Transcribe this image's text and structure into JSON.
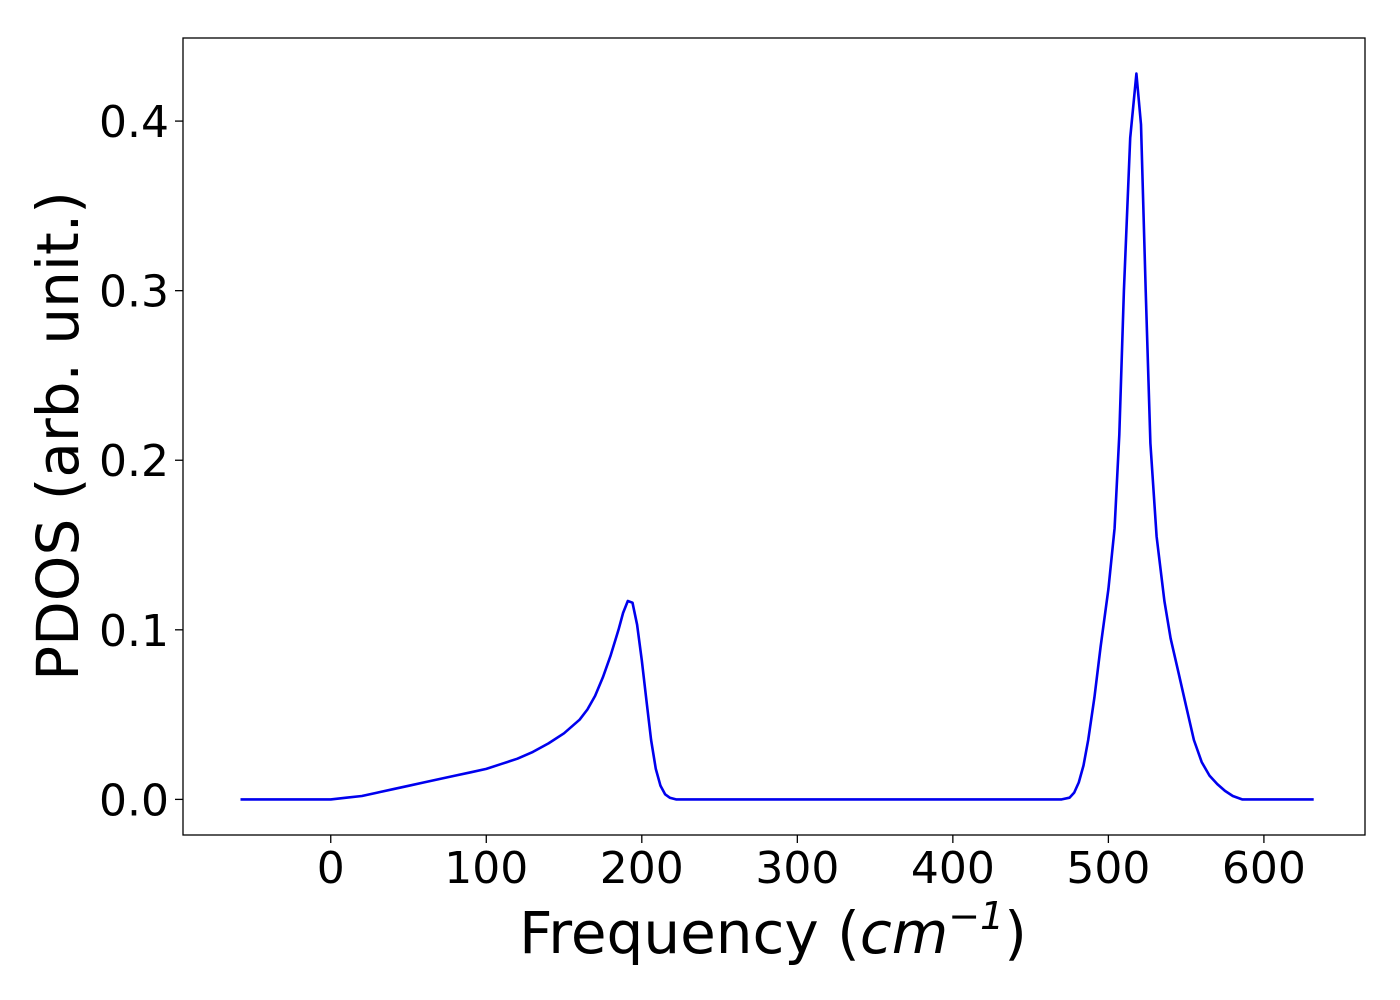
{
  "chart_data": {
    "type": "line",
    "title": "",
    "xlabel_prefix": "Frequency (",
    "xlabel_unit_base": "cm",
    "xlabel_unit_exp": "−1",
    "xlabel_suffix": ")",
    "ylabel": "PDOS (arb. unit.)",
    "xlim": [
      -95,
      665
    ],
    "ylim": [
      -0.021,
      0.449
    ],
    "xticks": [
      0,
      100,
      200,
      300,
      400,
      500,
      600
    ],
    "xtick_labels": [
      "0",
      "100",
      "200",
      "300",
      "400",
      "500",
      "600"
    ],
    "yticks": [
      0.0,
      0.1,
      0.2,
      0.3,
      0.4
    ],
    "ytick_labels": [
      "0.0",
      "0.1",
      "0.2",
      "0.3",
      "0.4"
    ],
    "grid": false,
    "legend": "none",
    "series": [
      {
        "color": "#0000ee",
        "x": [
          -58,
          -40,
          -20,
          0,
          10,
          20,
          30,
          40,
          50,
          60,
          70,
          80,
          90,
          100,
          110,
          120,
          130,
          140,
          150,
          160,
          165,
          170,
          175,
          180,
          185,
          188,
          191,
          194,
          197,
          200,
          203,
          206,
          209,
          212,
          215,
          218,
          222,
          230,
          250,
          300,
          400,
          470,
          475,
          478,
          481,
          484,
          487,
          491,
          495,
          500,
          504,
          507,
          510,
          514,
          518,
          521,
          524,
          527,
          531,
          536,
          540,
          545,
          550,
          555,
          560,
          565,
          570,
          575,
          580,
          586,
          600,
          632
        ],
        "y": [
          0.0,
          0.0,
          0.0,
          0.0,
          0.001,
          0.002,
          0.004,
          0.006,
          0.008,
          0.01,
          0.012,
          0.014,
          0.016,
          0.018,
          0.021,
          0.024,
          0.028,
          0.033,
          0.039,
          0.047,
          0.053,
          0.061,
          0.072,
          0.085,
          0.1,
          0.11,
          0.117,
          0.116,
          0.103,
          0.082,
          0.058,
          0.035,
          0.018,
          0.008,
          0.003,
          0.001,
          0.0,
          0.0,
          0.0,
          0.0,
          0.0,
          0.0,
          0.001,
          0.004,
          0.01,
          0.02,
          0.035,
          0.06,
          0.09,
          0.124,
          0.16,
          0.215,
          0.3,
          0.39,
          0.428,
          0.398,
          0.3,
          0.21,
          0.155,
          0.117,
          0.095,
          0.075,
          0.055,
          0.035,
          0.022,
          0.014,
          0.009,
          0.005,
          0.002,
          0.0,
          0.0,
          0.0
        ]
      }
    ]
  }
}
